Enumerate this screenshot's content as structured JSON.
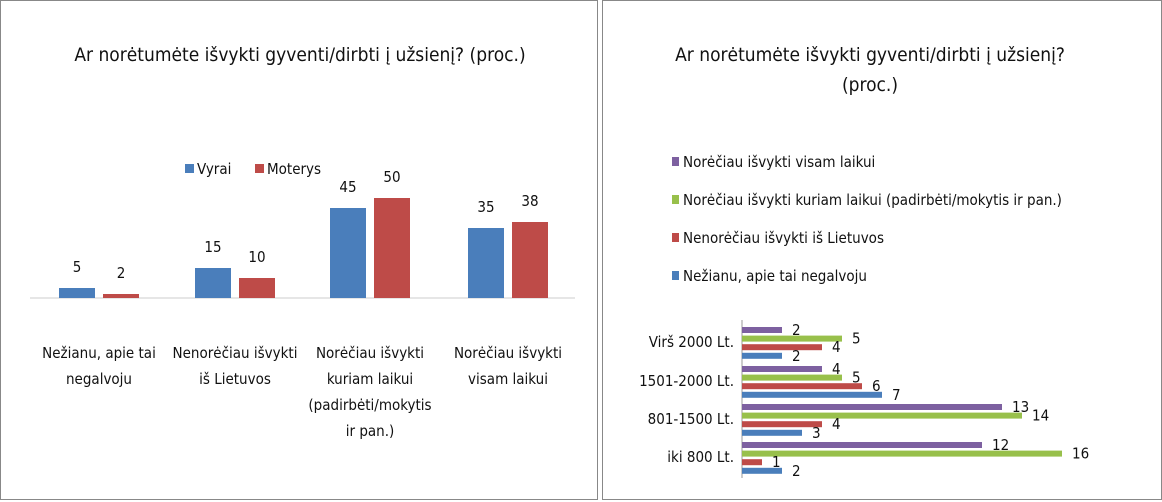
{
  "chart_data": [
    {
      "type": "bar",
      "title": "Ar norėtumėte išvykti gyventi/dirbti į užsienį? (proc.)",
      "categories": [
        "Nežianu, apie tai negalvoju",
        "Nenorėčiau išvykti iš Lietuvos",
        "Norėčiau išvykti kuriam laikui (padirbėti/mokytis ir pan.)",
        "Norėčiau išvykti visam laikui"
      ],
      "series": [
        {
          "name": "Vyrai",
          "color": "#4a7ebb",
          "values": [
            5,
            15,
            45,
            35
          ]
        },
        {
          "name": "Moterys",
          "color": "#be4b48",
          "values": [
            2,
            10,
            50,
            38
          ]
        }
      ]
    },
    {
      "type": "barh",
      "title": "Ar norėtumėte išvykti gyventi/dirbti į užsienį? (proc.)",
      "categories": [
        "Virš 2000 Lt.",
        "1501-2000 Lt.",
        "801-1500 Lt.",
        "iki 800 Lt."
      ],
      "series": [
        {
          "name": "Norėčiau išvykti visam laikui",
          "color": "#7d60a0",
          "values": [
            2,
            4,
            13,
            12
          ]
        },
        {
          "name": "Norėčiau išvykti kuriam laikui (padirbėti/mokytis ir pan.)",
          "color": "#98c04b",
          "values": [
            5,
            5,
            14,
            16
          ]
        },
        {
          "name": "Nenorėčiau išvykti iš Lietuvos",
          "color": "#be4b48",
          "values": [
            4,
            6,
            4,
            1
          ]
        },
        {
          "name": "Nežianu, apie tai negalvoju",
          "color": "#4a7ebb",
          "values": [
            2,
            7,
            3,
            2
          ]
        }
      ]
    }
  ]
}
